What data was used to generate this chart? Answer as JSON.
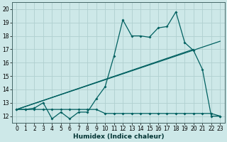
{
  "xlabel": "Humidex (Indice chaleur)",
  "bg_color": "#cde8e8",
  "grid_color": "#b0d0d0",
  "line_color": "#006060",
  "xlim": [
    -0.5,
    23.5
  ],
  "ylim": [
    11.5,
    20.5
  ],
  "x_ticks": [
    0,
    1,
    2,
    3,
    4,
    5,
    6,
    7,
    8,
    9,
    10,
    11,
    12,
    13,
    14,
    15,
    16,
    17,
    18,
    19,
    20,
    21,
    22,
    23
  ],
  "y_ticks": [
    12,
    13,
    14,
    15,
    16,
    17,
    18,
    19,
    20
  ],
  "main_curve_x": [
    0,
    1,
    2,
    3,
    4,
    5,
    6,
    7,
    8,
    9,
    10,
    11,
    12,
    13,
    14,
    15,
    16,
    17,
    18,
    19,
    20,
    21,
    22,
    23
  ],
  "main_curve_y": [
    12.5,
    12.5,
    12.6,
    13.0,
    11.8,
    12.3,
    11.8,
    12.3,
    12.3,
    13.3,
    14.2,
    16.5,
    19.2,
    18.0,
    18.0,
    17.9,
    18.6,
    18.7,
    19.8,
    17.5,
    16.9,
    15.5,
    12.0,
    12.0
  ],
  "flat_curve_x": [
    0,
    1,
    2,
    3,
    4,
    5,
    6,
    7,
    8,
    9,
    10,
    11,
    12,
    13,
    14,
    15,
    16,
    17,
    18,
    19,
    20,
    21,
    22,
    23
  ],
  "flat_curve_y": [
    12.5,
    12.5,
    12.5,
    12.5,
    12.5,
    12.5,
    12.5,
    12.5,
    12.5,
    12.5,
    12.2,
    12.2,
    12.2,
    12.2,
    12.2,
    12.2,
    12.2,
    12.2,
    12.2,
    12.2,
    12.2,
    12.2,
    12.2,
    12.0
  ],
  "trend1_x": [
    0,
    20
  ],
  "trend1_y": [
    12.5,
    17.0
  ],
  "trend2_x": [
    0,
    23
  ],
  "trend2_y": [
    12.5,
    17.6
  ]
}
